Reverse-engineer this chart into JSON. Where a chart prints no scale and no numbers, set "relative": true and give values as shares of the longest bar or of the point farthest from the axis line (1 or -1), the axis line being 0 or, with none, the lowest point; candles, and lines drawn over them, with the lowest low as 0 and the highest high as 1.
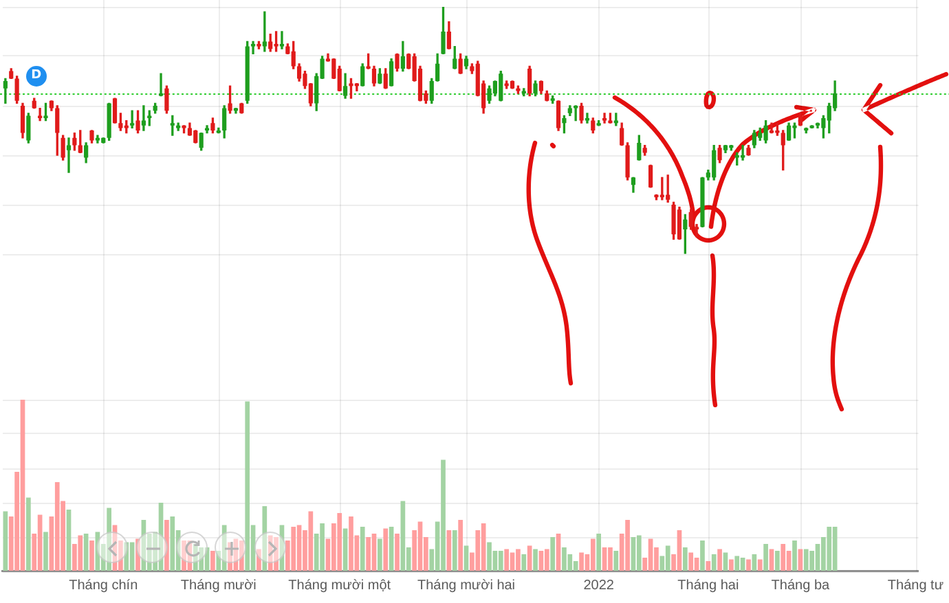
{
  "chart_data": [
    {
      "type": "candlestick",
      "categories": [
        null,
        null,
        null,
        null,
        null,
        null,
        null,
        null,
        null,
        null,
        null,
        null,
        null,
        null,
        null,
        null,
        null,
        "Tháng chín",
        null,
        null,
        null,
        null,
        null,
        null,
        null,
        null,
        null,
        null,
        null,
        null,
        null,
        null,
        null,
        null,
        null,
        null,
        null,
        "Tháng mười",
        null,
        null,
        null,
        null,
        null,
        null,
        null,
        null,
        null,
        null,
        null,
        null,
        null,
        null,
        null,
        null,
        null,
        null,
        null,
        null,
        "Tháng mười một",
        null,
        null,
        null,
        null,
        null,
        null,
        null,
        null,
        null,
        null,
        null,
        null,
        null,
        null,
        null,
        null,
        null,
        null,
        null,
        null,
        null,
        "Tháng mười hai",
        null,
        null,
        null,
        null,
        null,
        null,
        null,
        null,
        null,
        null,
        null,
        null,
        null,
        null,
        null,
        null,
        null,
        null,
        null,
        null,
        null,
        null,
        "2022",
        null,
        null,
        null,
        null,
        null,
        null,
        null,
        null,
        null,
        null,
        null,
        null,
        null,
        null,
        null,
        null,
        null,
        null,
        "Tháng hai",
        null,
        null,
        null,
        null,
        null,
        null,
        null,
        null,
        null,
        null,
        null,
        null,
        null,
        null,
        null,
        "Tháng ba",
        null,
        null,
        null,
        null,
        null,
        null,
        null,
        null,
        null,
        null,
        null,
        null,
        null,
        null,
        null,
        null,
        null,
        null,
        null,
        "Tháng tư"
      ],
      "ohlc": [
        [
          0.67,
          0.71,
          0.61,
          0.7
        ],
        [
          0.74,
          0.75,
          0.71,
          0.71
        ],
        [
          0.71,
          0.72,
          0.61,
          0.62
        ],
        [
          0.6,
          0.61,
          0.47,
          0.49
        ],
        [
          0.46,
          0.57,
          0.45,
          0.56
        ],
        [
          0.62,
          0.63,
          0.59,
          0.59
        ],
        [
          0.56,
          0.59,
          0.54,
          0.55
        ],
        [
          0.55,
          0.61,
          0.54,
          0.56
        ],
        [
          0.62,
          0.62,
          0.58,
          0.59
        ],
        [
          0.59,
          0.6,
          0.4,
          0.49
        ],
        [
          0.47,
          0.48,
          0.38,
          0.39
        ],
        [
          0.42,
          0.47,
          0.33,
          0.44
        ],
        [
          0.47,
          0.49,
          0.42,
          0.44
        ],
        [
          0.44,
          0.5,
          0.41,
          0.41
        ],
        [
          0.39,
          0.45,
          0.37,
          0.44
        ],
        [
          0.5,
          0.5,
          0.45,
          0.46
        ],
        [
          0.46,
          0.48,
          0.45,
          0.47
        ],
        [
          0.45,
          0.47,
          0.45,
          0.47
        ],
        [
          0.47,
          0.61,
          0.46,
          0.61
        ],
        [
          0.63,
          0.63,
          0.53,
          0.53
        ],
        [
          0.53,
          0.57,
          0.5,
          0.51
        ],
        [
          0.52,
          0.54,
          0.49,
          0.51
        ],
        [
          0.52,
          0.58,
          0.51,
          0.53
        ],
        [
          0.54,
          0.58,
          0.49,
          0.5
        ],
        [
          0.52,
          0.6,
          0.5,
          0.54
        ],
        [
          0.55,
          0.58,
          0.52,
          0.56
        ],
        [
          0.58,
          0.61,
          0.57,
          0.6
        ],
        [
          0.64,
          0.73,
          0.64,
          0.65
        ],
        [
          0.67,
          0.68,
          0.57,
          0.58
        ],
        [
          0.52,
          0.56,
          0.48,
          0.53
        ],
        [
          0.51,
          0.53,
          0.5,
          0.52
        ],
        [
          0.52,
          0.52,
          0.49,
          0.51
        ],
        [
          0.51,
          0.53,
          0.48,
          0.48
        ],
        [
          0.5,
          0.5,
          0.45,
          0.45
        ],
        [
          0.43,
          0.49,
          0.42,
          0.49
        ],
        [
          0.5,
          0.52,
          0.49,
          0.51
        ],
        [
          0.53,
          0.55,
          0.49,
          0.5
        ],
        [
          0.49,
          0.51,
          0.49,
          0.5
        ],
        [
          0.5,
          0.6,
          0.47,
          0.59
        ],
        [
          0.61,
          0.68,
          0.57,
          0.58
        ],
        [
          0.58,
          0.59,
          0.57,
          0.59
        ],
        [
          0.61,
          0.61,
          0.57,
          0.57
        ],
        [
          0.62,
          0.86,
          0.61,
          0.84
        ],
        [
          0.84,
          0.86,
          0.81,
          0.85
        ],
        [
          0.85,
          0.86,
          0.83,
          0.84
        ],
        [
          0.84,
          0.98,
          0.82,
          0.86
        ],
        [
          0.86,
          0.89,
          0.82,
          0.83
        ],
        [
          0.85,
          0.9,
          0.82,
          0.84
        ],
        [
          0.84,
          0.9,
          0.83,
          0.85
        ],
        [
          0.84,
          0.85,
          0.81,
          0.81
        ],
        [
          0.82,
          0.86,
          0.75,
          0.76
        ],
        [
          0.76,
          0.77,
          0.7,
          0.71
        ],
        [
          0.73,
          0.74,
          0.67,
          0.68
        ],
        [
          0.69,
          0.69,
          0.6,
          0.61
        ],
        [
          0.61,
          0.73,
          0.58,
          0.72
        ],
        [
          0.71,
          0.8,
          0.71,
          0.79
        ],
        [
          0.79,
          0.81,
          0.78,
          0.78
        ],
        [
          0.79,
          0.79,
          0.71,
          0.71
        ],
        [
          0.75,
          0.76,
          0.66,
          0.66
        ],
        [
          0.64,
          0.73,
          0.63,
          0.68
        ],
        [
          0.69,
          0.71,
          0.63,
          0.68
        ],
        [
          0.69,
          0.69,
          0.66,
          0.68
        ],
        [
          0.68,
          0.77,
          0.68,
          0.76
        ],
        [
          0.76,
          0.81,
          0.75,
          0.75
        ],
        [
          0.75,
          0.76,
          0.68,
          0.69
        ],
        [
          0.69,
          0.75,
          0.69,
          0.73
        ],
        [
          0.73,
          0.75,
          0.67,
          0.67
        ],
        [
          0.68,
          0.79,
          0.68,
          0.78
        ],
        [
          0.81,
          0.81,
          0.74,
          0.75
        ],
        [
          0.75,
          0.86,
          0.74,
          0.8
        ],
        [
          0.81,
          0.81,
          0.75,
          0.75
        ],
        [
          0.8,
          0.81,
          0.7,
          0.7
        ],
        [
          0.75,
          0.76,
          0.62,
          0.62
        ],
        [
          0.65,
          0.66,
          0.61,
          0.62
        ],
        [
          0.62,
          0.71,
          0.61,
          0.7
        ],
        [
          0.7,
          0.81,
          0.7,
          0.77
        ],
        [
          0.81,
          1,
          0.81,
          0.9
        ],
        [
          0.9,
          0.94,
          0.83,
          0.83
        ],
        [
          0.75,
          0.84,
          0.75,
          0.79
        ],
        [
          0.79,
          0.81,
          0.73,
          0.73
        ],
        [
          0.76,
          0.8,
          0.75,
          0.79
        ],
        [
          0.76,
          0.77,
          0.73,
          0.74
        ],
        [
          0.77,
          0.78,
          0.64,
          0.64
        ],
        [
          0.69,
          0.7,
          0.57,
          0.59
        ],
        [
          0.62,
          0.68,
          0.61,
          0.67
        ],
        [
          0.65,
          0.7,
          0.64,
          0.7
        ],
        [
          0.62,
          0.74,
          0.62,
          0.73
        ],
        [
          0.69,
          0.7,
          0.67,
          0.68
        ],
        [
          0.7,
          0.7,
          0.67,
          0.67
        ],
        [
          0.67,
          0.68,
          0.65,
          0.66
        ],
        [
          0.65,
          0.67,
          0.64,
          0.66
        ],
        [
          0.75,
          0.76,
          0.64,
          0.65
        ],
        [
          0.65,
          0.7,
          0.64,
          0.69
        ],
        [
          0.7,
          0.7,
          0.65,
          0.66
        ],
        [
          0.65,
          0.66,
          0.62,
          0.62
        ],
        [
          0.62,
          0.64,
          0.61,
          0.63
        ],
        [
          0.62,
          0.62,
          0.5,
          0.51
        ],
        [
          0.53,
          0.56,
          0.49,
          0.55
        ],
        [
          0.57,
          0.6,
          0.56,
          0.59
        ],
        [
          0.59,
          0.6,
          0.54,
          0.6
        ],
        [
          0.6,
          0.61,
          0.53,
          0.54
        ],
        [
          0.54,
          0.57,
          0.53,
          0.55
        ],
        [
          0.54,
          0.55,
          0.49,
          0.5
        ],
        [
          0.52,
          0.54,
          0.52,
          0.53
        ],
        [
          0.55,
          0.57,
          0.53,
          0.54
        ],
        [
          0.54,
          0.57,
          0.53,
          0.53
        ],
        [
          0.53,
          0.57,
          0.52,
          0.54
        ],
        [
          0.51,
          0.53,
          0.44,
          0.44
        ],
        [
          0.44,
          0.45,
          0.3,
          0.31
        ],
        [
          0.28,
          0.31,
          0.25,
          0.31
        ],
        [
          0.38,
          0.48,
          0.38,
          0.45
        ],
        [
          0.43,
          0.44,
          0.4,
          0.41
        ],
        [
          0.36,
          0.36,
          0.27,
          0.27
        ],
        [
          0.24,
          0.24,
          0.22,
          0.23
        ],
        [
          0.24,
          0.31,
          0.22,
          0.23
        ],
        [
          0.24,
          0.32,
          0.21,
          0.22
        ],
        [
          0.2,
          0.21,
          0.06,
          0.08
        ],
        [
          0.18,
          0.19,
          0.06,
          0.06
        ],
        [
          0.1,
          0.16,
          0,
          0.14
        ],
        [
          0.17,
          0.18,
          0.1,
          0.11
        ],
        [
          0.11,
          0.12,
          0.07,
          0.1
        ],
        [
          0.11,
          0.31,
          0.11,
          0.31
        ],
        [
          0.31,
          0.34,
          0.3,
          0.33
        ],
        [
          0.31,
          0.44,
          0.3,
          0.42
        ],
        [
          0.43,
          0.44,
          0.37,
          0.38
        ],
        [
          0.42,
          0.44,
          0.41,
          0.44
        ],
        [
          0.43,
          0.44,
          0.42,
          0.44
        ],
        [
          0.39,
          0.41,
          0.36,
          0.4
        ],
        [
          0.39,
          0.44,
          0.38,
          0.4
        ],
        [
          0.43,
          0.44,
          0.4,
          0.4
        ],
        [
          0.44,
          0.5,
          0.43,
          0.49
        ],
        [
          0.47,
          0.51,
          0.46,
          0.49
        ],
        [
          0.46,
          0.54,
          0.45,
          0.52
        ],
        [
          0.5,
          0.53,
          0.49,
          0.49
        ],
        [
          0.5,
          0.53,
          0.48,
          0.49
        ],
        [
          0.49,
          0.5,
          0.34,
          0.44
        ],
        [
          0.46,
          0.53,
          0.46,
          0.52
        ],
        [
          0.51,
          0.53,
          0.47,
          0.52
        ],
        [
          0.56,
          0.57,
          0.52,
          0.52
        ],
        [
          0.5,
          0.51,
          0.49,
          0.51
        ],
        [
          0.51,
          0.52,
          0.51,
          0.52
        ],
        [
          0.52,
          0.53,
          0.51,
          0.53
        ],
        [
          0.51,
          0.56,
          0.47,
          0.55
        ],
        [
          0.54,
          0.61,
          0.49,
          0.6
        ],
        [
          0.59,
          0.7,
          0.58,
          0.65
        ],
        null,
        null,
        null,
        null,
        null,
        null,
        null,
        null,
        null,
        null,
        null,
        null,
        null,
        null
      ],
      "colors": [
        "#1e9e1e",
        "#e01b1b",
        "#e01b1b",
        "#e01b1b",
        "#1e9e1e",
        "#e01b1b",
        "#e01b1b",
        "#1e9e1e",
        "#e01b1b",
        "#e01b1b",
        "#e01b1b",
        "#1e9e1e",
        "#e01b1b",
        "#e01b1b",
        "#1e9e1e",
        "#e01b1b",
        "#1e9e1e",
        "#1e9e1e",
        "#1e9e1e",
        "#e01b1b",
        "#e01b1b",
        "#e01b1b",
        "#1e9e1e",
        "#e01b1b",
        "#1e9e1e",
        "#1e9e1e",
        "#1e9e1e",
        "#1e9e1e",
        "#e01b1b",
        "#1e9e1e",
        "#1e9e1e",
        "#e01b1b",
        "#e01b1b",
        "#e01b1b",
        "#1e9e1e",
        "#1e9e1e",
        "#e01b1b",
        "#1e9e1e",
        "#1e9e1e",
        "#e01b1b",
        "#1e9e1e",
        "#e01b1b",
        "#1e9e1e",
        "#1e9e1e",
        "#e01b1b",
        "#1e9e1e",
        "#e01b1b",
        "#e01b1b",
        "#1e9e1e",
        "#e01b1b",
        "#e01b1b",
        "#e01b1b",
        "#e01b1b",
        "#e01b1b",
        "#1e9e1e",
        "#1e9e1e",
        "#e01b1b",
        "#e01b1b",
        "#e01b1b",
        "#1e9e1e",
        "#e01b1b",
        "#e01b1b",
        "#1e9e1e",
        "#e01b1b",
        "#e01b1b",
        "#1e9e1e",
        "#e01b1b",
        "#1e9e1e",
        "#e01b1b",
        "#1e9e1e",
        "#e01b1b",
        "#e01b1b",
        "#e01b1b",
        "#e01b1b",
        "#1e9e1e",
        "#1e9e1e",
        "#1e9e1e",
        "#e01b1b",
        "#1e9e1e",
        "#e01b1b",
        "#1e9e1e",
        "#e01b1b",
        "#e01b1b",
        "#e01b1b",
        "#1e9e1e",
        "#1e9e1e",
        "#1e9e1e",
        "#e01b1b",
        "#e01b1b",
        "#e01b1b",
        "#1e9e1e",
        "#e01b1b",
        "#1e9e1e",
        "#e01b1b",
        "#e01b1b",
        "#1e9e1e",
        "#e01b1b",
        "#1e9e1e",
        "#1e9e1e",
        "#1e9e1e",
        "#e01b1b",
        "#1e9e1e",
        "#e01b1b",
        "#1e9e1e",
        "#e01b1b",
        "#e01b1b",
        "#1e9e1e",
        "#e01b1b",
        "#e01b1b",
        "#1e9e1e",
        "#1e9e1e",
        "#e01b1b",
        "#e01b1b",
        "#e01b1b",
        "#e01b1b",
        "#e01b1b",
        "#e01b1b",
        "#e01b1b",
        "#1e9e1e",
        "#e01b1b",
        "#e01b1b",
        "#1e9e1e",
        "#1e9e1e",
        "#1e9e1e",
        "#e01b1b",
        "#1e9e1e",
        "#1e9e1e",
        "#1e9e1e",
        "#1e9e1e",
        "#e01b1b",
        "#1e9e1e",
        "#1e9e1e",
        "#1e9e1e",
        "#e01b1b",
        "#e01b1b",
        "#e01b1b",
        "#1e9e1e",
        "#1e9e1e",
        "#e01b1b",
        "#1e9e1e",
        "#1e9e1e",
        "#1e9e1e",
        "#1e9e1e",
        "#1e9e1e",
        "#1e9e1e",
        null,
        null,
        null,
        null,
        null,
        null,
        null,
        null,
        null,
        null,
        null,
        null,
        null,
        null
      ],
      "relative": true,
      "ref_lines": [
        {
          "axis": "y",
          "value": 0.65,
          "color": "#2ecc2e",
          "line_style": "dotted"
        }
      ],
      "annotations": [
        {
          "text": "D",
          "y": 0.72
        }
      ],
      "grid": true,
      "tick_labels": false
    },
    {
      "type": "bar",
      "categories": [
        null,
        null,
        null,
        null,
        null,
        null,
        null,
        null,
        null,
        null,
        null,
        null,
        null,
        null,
        null,
        null,
        null,
        "Tháng chín",
        null,
        null,
        null,
        null,
        null,
        null,
        null,
        null,
        null,
        null,
        null,
        null,
        null,
        null,
        null,
        null,
        null,
        null,
        null,
        "Tháng mười",
        null,
        null,
        null,
        null,
        null,
        null,
        null,
        null,
        null,
        null,
        null,
        null,
        null,
        null,
        null,
        null,
        null,
        null,
        null,
        null,
        "Tháng mười một",
        null,
        null,
        null,
        null,
        null,
        null,
        null,
        null,
        null,
        null,
        null,
        null,
        null,
        null,
        null,
        null,
        null,
        null,
        null,
        null,
        null,
        "Tháng mười hai",
        null,
        null,
        null,
        null,
        null,
        null,
        null,
        null,
        null,
        null,
        null,
        null,
        null,
        null,
        null,
        null,
        null,
        null,
        null,
        null,
        null,
        null,
        "2022",
        null,
        null,
        null,
        null,
        null,
        null,
        null,
        null,
        null,
        null,
        null,
        null,
        null,
        null,
        null,
        null,
        null,
        null,
        "Tháng hai",
        null,
        null,
        null,
        null,
        null,
        null,
        null,
        null,
        null,
        null,
        null,
        null,
        null,
        null,
        null,
        "Tháng ba",
        null,
        null,
        null,
        null,
        null,
        null,
        null,
        null,
        null,
        null,
        null,
        null,
        null,
        null,
        null,
        null,
        null,
        null,
        null,
        "Tháng tư"
      ],
      "values": [
        0.35,
        0.32,
        0.58,
        1,
        0.43,
        0.22,
        0.33,
        0.23,
        0.32,
        0.52,
        0.41,
        0.36,
        0.16,
        0.21,
        0.22,
        0.18,
        0.23,
        0.16,
        0.37,
        0.27,
        0.18,
        0.17,
        0.17,
        0.19,
        0.3,
        0.22,
        0.23,
        0.4,
        0.3,
        0.32,
        0.24,
        0.18,
        0.18,
        0.16,
        0.14,
        0.14,
        0.12,
        0.12,
        0.27,
        0.17,
        0.19,
        0.18,
        0.99,
        0.27,
        0.13,
        0.38,
        0.21,
        0.2,
        0.27,
        0.18,
        0.26,
        0.27,
        0.24,
        0.35,
        0.22,
        0.28,
        0.19,
        0.28,
        0.34,
        0.25,
        0.32,
        0.21,
        0.26,
        0.2,
        0.22,
        0.19,
        0.25,
        0.26,
        0.22,
        0.41,
        0.14,
        0.24,
        0.29,
        0.2,
        0.13,
        0.29,
        0.65,
        0.24,
        0.24,
        0.3,
        0.15,
        0.11,
        0.24,
        0.28,
        0.17,
        0.12,
        0.12,
        0.13,
        0.11,
        0.13,
        0.1,
        0.15,
        0.13,
        0.12,
        0.13,
        0.2,
        0.22,
        0.14,
        0.1,
        0.06,
        0.11,
        0.1,
        0.19,
        0.22,
        0.14,
        0.14,
        0.12,
        0.22,
        0.3,
        0.2,
        0.21,
        0.08,
        0.19,
        0.14,
        0.09,
        0.15,
        0.1,
        0.24,
        0.14,
        0.11,
        0.08,
        0.18,
        0.06,
        0.1,
        0.13,
        0.11,
        0.07,
        0.09,
        0.08,
        0.07,
        0.1,
        0.07,
        0.16,
        0.13,
        0.12,
        0.16,
        0.12,
        0.18,
        0.13,
        0.13,
        0.12,
        0.16,
        0.2,
        0.26,
        0.26,
        null,
        null,
        null,
        null,
        null,
        null,
        null,
        null,
        null,
        null,
        null,
        null,
        null,
        null
      ],
      "colors": [
        "#a3d3a3",
        "#ff9e9e",
        "#ff9e9e",
        "#ff9e9e",
        "#a3d3a3",
        "#ff9e9e",
        "#ff9e9e",
        "#a3d3a3",
        "#ff9e9e",
        "#ff9e9e",
        "#ff9e9e",
        "#a3d3a3",
        "#ff9e9e",
        "#ff9e9e",
        "#a3d3a3",
        "#ff9e9e",
        "#a3d3a3",
        "#a3d3a3",
        "#a3d3a3",
        "#ff9e9e",
        "#ff9e9e",
        "#a3d3a3",
        "#a3d3a3",
        "#ff9e9e",
        "#a3d3a3",
        "#a3d3a3",
        "#a3d3a3",
        "#a3d3a3",
        "#ff9e9e",
        "#a3d3a3",
        "#a3d3a3",
        "#ff9e9e",
        "#ff9e9e",
        "#a3d3a3",
        "#a3d3a3",
        "#a3d3a3",
        "#ff9e9e",
        "#a3d3a3",
        "#a3d3a3",
        "#ff9e9e",
        "#ff9e9e",
        "#ff9e9e",
        "#a3d3a3",
        "#a3d3a3",
        "#ff9e9e",
        "#a3d3a3",
        "#ff9e9e",
        "#ff9e9e",
        "#a3d3a3",
        "#ff9e9e",
        "#ff9e9e",
        "#ff9e9e",
        "#ff9e9e",
        "#ff9e9e",
        "#a3d3a3",
        "#a3d3a3",
        "#ff9e9e",
        "#ff9e9e",
        "#ff9e9e",
        "#a3d3a3",
        "#ff9e9e",
        "#ff9e9e",
        "#a3d3a3",
        "#ff9e9e",
        "#ff9e9e",
        "#a3d3a3",
        "#ff9e9e",
        "#a3d3a3",
        "#ff9e9e",
        "#a3d3a3",
        "#a3d3a3",
        "#ff9e9e",
        "#ff9e9e",
        "#ff9e9e",
        "#a3d3a3",
        "#a3d3a3",
        "#a3d3a3",
        "#ff9e9e",
        "#a3d3a3",
        "#ff9e9e",
        "#a3d3a3",
        "#ff9e9e",
        "#ff9e9e",
        "#ff9e9e",
        "#a3d3a3",
        "#a3d3a3",
        "#a3d3a3",
        "#ff9e9e",
        "#ff9e9e",
        "#ff9e9e",
        "#a3d3a3",
        "#ff9e9e",
        "#a3d3a3",
        "#ff9e9e",
        "#ff9e9e",
        "#a3d3a3",
        "#ff9e9e",
        "#a3d3a3",
        "#a3d3a3",
        "#a3d3a3",
        "#ff9e9e",
        "#ff9e9e",
        "#ff9e9e",
        "#a3d3a3",
        "#ff9e9e",
        "#ff9e9e",
        "#a3d3a3",
        "#ff9e9e",
        "#ff9e9e",
        "#a3d3a3",
        "#a3d3a3",
        "#ff9e9e",
        "#ff9e9e",
        "#ff9e9e",
        "#a3d3a3",
        "#a3d3a3",
        "#ff9e9e",
        "#ff9e9e",
        "#a3d3a3",
        "#ff9e9e",
        "#ff9e9e",
        "#a3d3a3",
        "#ff9e9e",
        "#a3d3a3",
        "#ff9e9e",
        "#a3d3a3",
        "#ff9e9e",
        "#a3d3a3",
        "#a3d3a3",
        "#ff9e9e",
        "#a3d3a3",
        "#ff9e9e",
        "#a3d3a3",
        "#ff9e9e",
        "#a3d3a3",
        "#ff9e9e",
        "#ff9e9e",
        "#a3d3a3",
        "#ff9e9e",
        "#a3d3a3",
        "#a3d3a3",
        "#a3d3a3",
        "#a3d3a3",
        "#a3d3a3",
        "#a3d3a3",
        null,
        null,
        null,
        null,
        null,
        null,
        null,
        null,
        null,
        null,
        null,
        null,
        null,
        null
      ],
      "relative": true,
      "grid": true,
      "tick_labels": "x"
    }
  ]
}
